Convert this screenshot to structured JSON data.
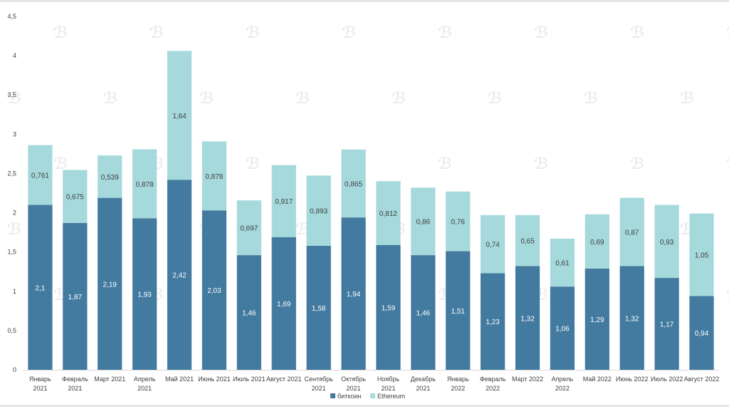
{
  "chart_data": {
    "type": "bar",
    "stacked": true,
    "categories": [
      [
        "Январь",
        "2021"
      ],
      [
        "Февраль",
        "2021"
      ],
      [
        "Март 2021"
      ],
      [
        "Апрель",
        "2021"
      ],
      [
        "Май 2021"
      ],
      [
        "Июнь 2021"
      ],
      [
        "Июль 2021"
      ],
      [
        "Август 2021"
      ],
      [
        "Сентябрь",
        "2021"
      ],
      [
        "Октябрь",
        "2021"
      ],
      [
        "Ноябрь",
        "2021"
      ],
      [
        "Декабрь",
        "2021"
      ],
      [
        "Январь",
        "2022"
      ],
      [
        "Февраль",
        "2022"
      ],
      [
        "Март 2022"
      ],
      [
        "Апрель",
        "2022"
      ],
      [
        "Май 2022"
      ],
      [
        "Июнь 2022"
      ],
      [
        "Июль 2022"
      ],
      [
        "Август 2022"
      ]
    ],
    "series": [
      {
        "name": "биткоин",
        "color": "#437a9f",
        "label_color": "#ffffff",
        "values": [
          2.1,
          1.87,
          2.19,
          1.93,
          2.42,
          2.03,
          1.46,
          1.69,
          1.58,
          1.94,
          1.59,
          1.46,
          1.51,
          1.23,
          1.32,
          1.06,
          1.29,
          1.32,
          1.17,
          0.94
        ],
        "labels": [
          "2,1",
          "1,87",
          "2,19",
          "1,93",
          "2,42",
          "2,03",
          "1,46",
          "1,69",
          "1,58",
          "1,94",
          "1,59",
          "1,46",
          "1,51",
          "1,23",
          "1,32",
          "1,06",
          "1,29",
          "1,32",
          "1,17",
          "0,94"
        ]
      },
      {
        "name": "Ethereum",
        "color": "#a6d9dc",
        "label_color": "#404040",
        "values": [
          0.761,
          0.675,
          0.539,
          0.878,
          1.64,
          0.878,
          0.697,
          0.917,
          0.893,
          0.865,
          0.812,
          0.86,
          0.76,
          0.74,
          0.65,
          0.61,
          0.69,
          0.87,
          0.93,
          1.05
        ],
        "labels": [
          "0,761",
          "0,675",
          "0,539",
          "0,878",
          "1,64",
          "0,878",
          "0,697",
          "0,917",
          "0,893",
          "0,865",
          "0,812",
          "0,86",
          "0,76",
          "0,74",
          "0,65",
          "0,61",
          "0,69",
          "0,87",
          "0,93",
          "1,05"
        ]
      }
    ],
    "ylim": [
      0,
      4.5
    ],
    "yticks": [
      "0",
      "0,5",
      "1",
      "1,5",
      "2",
      "2,5",
      "3",
      "3,5",
      "4",
      "4,5"
    ],
    "legend_position": "bottom",
    "grid": false
  }
}
